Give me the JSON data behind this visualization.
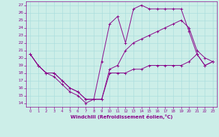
{
  "xlabel": "Windchill (Refroidissement éolien,°C)",
  "background_color": "#cceee8",
  "grid_color": "#aadddd",
  "line_color": "#880088",
  "xlim": [
    -0.5,
    23.5
  ],
  "ylim": [
    13.5,
    27.5
  ],
  "xticks": [
    0,
    1,
    2,
    3,
    4,
    5,
    6,
    7,
    8,
    9,
    10,
    11,
    12,
    13,
    14,
    15,
    16,
    17,
    18,
    19,
    20,
    21,
    22,
    23
  ],
  "yticks": [
    14,
    15,
    16,
    17,
    18,
    19,
    20,
    21,
    22,
    23,
    24,
    25,
    26,
    27
  ],
  "line1_x": [
    0,
    1,
    2,
    3,
    4,
    5,
    6,
    7,
    8,
    9,
    10,
    11,
    12,
    13,
    14,
    15,
    16,
    17,
    18,
    19,
    20,
    21,
    22,
    23
  ],
  "line1_y": [
    20.5,
    19,
    18,
    17.5,
    16.5,
    15.5,
    15,
    14,
    14.5,
    14.5,
    18,
    18,
    18,
    18.5,
    18.5,
    19,
    19,
    19,
    19,
    19,
    19.5,
    20.5,
    19,
    19.5
  ],
  "line2_x": [
    0,
    1,
    2,
    3,
    4,
    5,
    6,
    7,
    8,
    9,
    10,
    11,
    12,
    13,
    14,
    15,
    16,
    17,
    18,
    19,
    20,
    21,
    22,
    23
  ],
  "line2_y": [
    20.5,
    19,
    18,
    18,
    17,
    16,
    15.5,
    14.5,
    14.5,
    19.5,
    24.5,
    25.5,
    22,
    26.5,
    27,
    26.5,
    26.5,
    26.5,
    26.5,
    26.5,
    23.5,
    20.5,
    19,
    19.5
  ],
  "line3_x": [
    0,
    1,
    2,
    3,
    4,
    5,
    6,
    7,
    8,
    9,
    10,
    11,
    12,
    13,
    14,
    15,
    16,
    17,
    18,
    19,
    20,
    21,
    22,
    23
  ],
  "line3_y": [
    20.5,
    19,
    18,
    18,
    17,
    16,
    15.5,
    14.5,
    14.5,
    14.5,
    18.5,
    19,
    21,
    22,
    22.5,
    23,
    23.5,
    24,
    24.5,
    25,
    24,
    21,
    20,
    19.5
  ]
}
